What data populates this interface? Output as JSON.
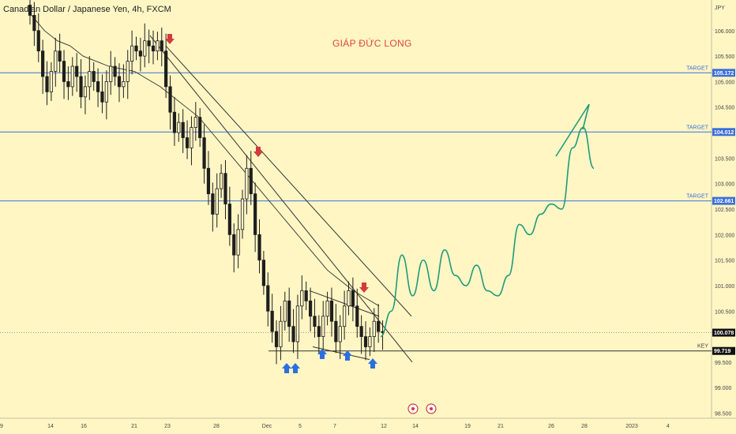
{
  "header": {
    "title": "Canadian Dollar / Japanese Yen, 4h, FXCM",
    "author": "GIÁP ĐỨC LONG"
  },
  "colors": {
    "background": "#fff6c4",
    "candle": "#1e1e1e",
    "target_line": "#3c6fd9",
    "trend_line": "#333333",
    "projection": "#1f9a7a",
    "arrow_down": "#d33a3a",
    "arrow_up": "#2c6fe0",
    "price_badge": "#111111",
    "author_text": "#e0443a"
  },
  "chart_data": {
    "type": "candlestick",
    "symbol": "CADJPY",
    "timeframe": "4h",
    "y_axis": {
      "unit_label": "JPY",
      "range": [
        98.4,
        106.6
      ],
      "ticks": [
        "106.000",
        "105.500",
        "105.000",
        "104.500",
        "104.000",
        "103.500",
        "103.000",
        "102.500",
        "102.000",
        "101.500",
        "101.000",
        "100.500",
        "99.500",
        "99.000",
        "98.500"
      ],
      "tick_values": [
        106.0,
        105.5,
        105.0,
        104.5,
        104.0,
        103.5,
        103.0,
        102.5,
        102.0,
        101.5,
        101.0,
        100.5,
        99.5,
        99.0,
        98.5
      ]
    },
    "x_axis": {
      "ticks": [
        "9",
        "14",
        "16",
        "21",
        "23",
        "28",
        "Dec",
        "5",
        "7",
        "12",
        "14",
        "19",
        "21",
        "26",
        "28",
        "2023",
        "4"
      ]
    },
    "levels": [
      {
        "label": "TARGET",
        "price": 105.172,
        "badge": "105.172",
        "kind": "target"
      },
      {
        "label": "TARGET",
        "price": 104.012,
        "badge": "104.012",
        "kind": "target"
      },
      {
        "label": "TARGET",
        "price": 102.661,
        "badge": "102.661",
        "kind": "target"
      },
      {
        "label": "KEY",
        "price": 99.719,
        "badge": "99.719",
        "kind": "key"
      }
    ],
    "last_price": {
      "value": 100.078,
      "badge": "100.078"
    },
    "closes": [
      106.3,
      106.0,
      105.6,
      105.1,
      104.8,
      105.2,
      105.6,
      105.4,
      105.0,
      104.9,
      105.3,
      105.1,
      104.7,
      104.9,
      105.2,
      105.0,
      104.8,
      104.6,
      105.0,
      105.3,
      105.1,
      104.9,
      105.0,
      105.4,
      105.7,
      105.6,
      105.5,
      105.8,
      105.7,
      105.6,
      105.8,
      105.6,
      104.9,
      104.4,
      104.0,
      104.2,
      103.9,
      103.7,
      104.1,
      104.3,
      103.9,
      103.3,
      102.8,
      102.4,
      102.9,
      103.2,
      102.6,
      102.0,
      101.6,
      102.1,
      102.7,
      103.3,
      102.8,
      102.0,
      101.5,
      101.0,
      100.5,
      100.1,
      99.8,
      100.3,
      100.7,
      100.2,
      99.9,
      100.6,
      100.9,
      100.7,
      100.4,
      100.2,
      100.0,
      100.4,
      100.7,
      100.3,
      99.9,
      100.2,
      100.6,
      100.9,
      100.6,
      100.2,
      100.0,
      99.8,
      100.0,
      100.3,
      100.1,
      100.08
    ],
    "moving_average": [
      106.3,
      106.0,
      105.8,
      105.7,
      105.5,
      105.4,
      105.3,
      105.25,
      105.2,
      105.05,
      104.9,
      104.7,
      104.5,
      104.3,
      104.0,
      103.7,
      103.4,
      103.1,
      102.8,
      102.5,
      102.2,
      101.9,
      101.6,
      101.3,
      101.1,
      100.9,
      100.75,
      100.6
    ],
    "trend_lines": [
      {
        "from": [
          "Nov 22",
          105.9
        ],
        "to": [
          "Dec 13",
          99.5
        ]
      },
      {
        "from": [
          "Nov 23",
          105.7
        ],
        "to": [
          "Dec 12",
          100.4
        ]
      },
      {
        "from": [
          "Dec 5",
          100.9
        ],
        "to": [
          "Dec 12",
          100.4
        ]
      },
      {
        "from": [
          "Dec 6",
          99.8
        ],
        "to": [
          "Dec 13",
          99.55
        ]
      }
    ],
    "projection_path": [
      100.0,
      100.5,
      101.6,
      100.8,
      101.5,
      100.9,
      101.7,
      101.2,
      101.0,
      101.4,
      100.9,
      100.8,
      101.2,
      102.2,
      102.0,
      102.4,
      102.6,
      102.5,
      103.7,
      104.1,
      103.3
    ]
  }
}
